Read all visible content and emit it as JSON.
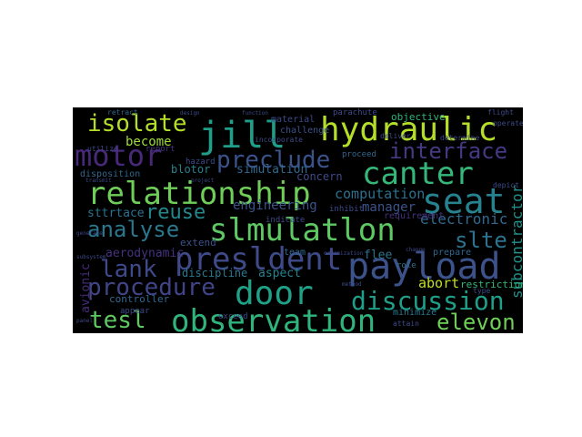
{
  "wordcloud": {
    "background": "#000000",
    "colormap": [
      "#440154",
      "#3b528b",
      "#21918c",
      "#5ec962",
      "#fde725"
    ],
    "words": [
      {
        "text": "hydraulic",
        "color": "#b5de2b",
        "weight": 1.0
      },
      {
        "text": "observation",
        "color": "#2fb47c",
        "weight": 0.98
      },
      {
        "text": "relationship",
        "color": "#6ece58",
        "weight": 0.96
      },
      {
        "text": "slmulatlon",
        "color": "#5ec962",
        "weight": 0.94
      },
      {
        "text": "presldent",
        "color": "#3e4a89",
        "weight": 0.92
      },
      {
        "text": "payload",
        "color": "#3b528b",
        "weight": 0.92
      },
      {
        "text": "canter",
        "color": "#35b779",
        "weight": 0.9
      },
      {
        "text": "motor",
        "color": "#482878",
        "weight": 0.85
      },
      {
        "text": "isolate",
        "color": "#b5de2b",
        "weight": 0.84
      },
      {
        "text": "jill",
        "color": "#1f9e89",
        "weight": 0.86
      },
      {
        "text": "seat",
        "color": "#26828e",
        "weight": 0.86
      },
      {
        "text": "door",
        "color": "#1fa187",
        "weight": 0.84
      },
      {
        "text": "discussion",
        "color": "#1f9e89",
        "weight": 0.8
      },
      {
        "text": "preclude",
        "color": "#3b528b",
        "weight": 0.78
      },
      {
        "text": "interface",
        "color": "#443983",
        "weight": 0.74
      },
      {
        "text": "procedure",
        "color": "#414487",
        "weight": 0.74
      },
      {
        "text": "analyse",
        "color": "#2a788e",
        "weight": 0.72
      },
      {
        "text": "tesl",
        "color": "#5ec962",
        "weight": 0.72
      },
      {
        "text": "lank",
        "color": "#3e4a89",
        "weight": 0.7
      },
      {
        "text": "reuse",
        "color": "#23888e",
        "weight": 0.7
      },
      {
        "text": "elevon",
        "color": "#6ece58",
        "weight": 0.66
      },
      {
        "text": "slte",
        "color": "#2c728e",
        "weight": 0.64
      },
      {
        "text": "subcontractor",
        "color": "#21918c",
        "weight": 0.5
      },
      {
        "text": "electronic",
        "color": "#31688e",
        "weight": 0.48
      },
      {
        "text": "computation",
        "color": "#2d708e",
        "weight": 0.46
      },
      {
        "text": "become",
        "color": "#a0da39",
        "weight": 0.44
      },
      {
        "text": "abort",
        "color": "#c2df23",
        "weight": 0.44
      },
      {
        "text": "engineering",
        "color": "#3b528b",
        "weight": 0.4
      },
      {
        "text": "avionic",
        "color": "#472d7b",
        "weight": 0.4
      },
      {
        "text": "simulation",
        "color": "#31688e",
        "weight": 0.38
      },
      {
        "text": "manager",
        "color": "#3b528b",
        "weight": 0.38
      },
      {
        "text": "sttrtace",
        "color": "#2c728e",
        "weight": 0.36
      },
      {
        "text": "aerodynamic",
        "color": "#46327e",
        "weight": 0.34
      },
      {
        "text": "discipline",
        "color": "#2a788e",
        "weight": 0.34
      },
      {
        "text": "aspect",
        "color": "#26828e",
        "weight": 0.34
      },
      {
        "text": "flee",
        "color": "#2c728e",
        "weight": 0.34
      },
      {
        "text": "blotor",
        "color": "#26828e",
        "weight": 0.32
      },
      {
        "text": "restriction",
        "color": "#35b779",
        "weight": 0.32
      },
      {
        "text": "concern",
        "color": "#3e4a89",
        "weight": 0.3
      },
      {
        "text": "extend",
        "color": "#3b528b",
        "weight": 0.28
      },
      {
        "text": "controller",
        "color": "#31688e",
        "weight": 0.28
      },
      {
        "text": "minimize",
        "color": "#2a788e",
        "weight": 0.26
      },
      {
        "text": "requirement",
        "color": "#46327e",
        "weight": 0.26
      },
      {
        "text": "material",
        "color": "#3e4a89",
        "weight": 0.26
      },
      {
        "text": "challenge",
        "color": "#3b528b",
        "weight": 0.26
      },
      {
        "text": "objective",
        "color": "#2fb47c",
        "weight": 0.26
      },
      {
        "text": "parachute",
        "color": "#3e4a89",
        "weight": 0.24
      },
      {
        "text": "hazard",
        "color": "#3e4a89",
        "weight": 0.24
      },
      {
        "text": "disposition",
        "color": "#31688e",
        "weight": 0.24
      },
      {
        "text": "team",
        "color": "#31688e",
        "weight": 0.24
      },
      {
        "text": "prepare",
        "color": "#31688e",
        "weight": 0.24
      },
      {
        "text": "indicate",
        "color": "#3e4a89",
        "weight": 0.22
      },
      {
        "text": "proceed",
        "color": "#31688e",
        "weight": 0.22
      },
      {
        "text": "inhibit",
        "color": "#3e4a89",
        "weight": 0.22
      },
      {
        "text": "role",
        "color": "#2c728e",
        "weight": 0.22
      },
      {
        "text": "exceed",
        "color": "#3e4a89",
        "weight": 0.22
      },
      {
        "text": "report",
        "color": "#46327e",
        "weight": 0.22
      },
      {
        "text": "appear",
        "color": "#3e4a89",
        "weight": 0.22
      },
      {
        "text": "attain",
        "color": "#3e4a89",
        "weight": 0.2
      },
      {
        "text": "deliver",
        "color": "#3e4a89",
        "weight": 0.2
      },
      {
        "text": "determine",
        "color": "#3e4a89",
        "weight": 0.2
      },
      {
        "text": "incorporate",
        "color": "#3e4a89",
        "weight": 0.2
      },
      {
        "text": "utilize",
        "color": "#3e4a89",
        "weight": 0.2
      },
      {
        "text": "operate",
        "color": "#3e4a89",
        "weight": 0.2
      },
      {
        "text": "depict",
        "color": "#3e4a89",
        "weight": 0.2
      },
      {
        "text": "type",
        "color": "#3e4a89",
        "weight": 0.2
      },
      {
        "text": "flight",
        "color": "#3e4a89",
        "weight": 0.2
      },
      {
        "text": "retract",
        "color": "#31688e",
        "weight": 0.18
      },
      {
        "text": "transmit",
        "color": "#3e4a89",
        "weight": 0.16
      },
      {
        "text": "project",
        "color": "#3e4a89",
        "weight": 0.16
      },
      {
        "text": "function",
        "color": "#3e4a89",
        "weight": 0.16
      },
      {
        "text": "design",
        "color": "#3e4a89",
        "weight": 0.16
      },
      {
        "text": "organization",
        "color": "#3e4a89",
        "weight": 0.14
      },
      {
        "text": "change",
        "color": "#3e4a89",
        "weight": 0.14
      },
      {
        "text": "method",
        "color": "#3e4a89",
        "weight": 0.14
      },
      {
        "text": "panel",
        "color": "#3e4a89",
        "weight": 0.14
      },
      {
        "text": "generate",
        "color": "#3e4a89",
        "weight": 0.14
      },
      {
        "text": "subsystem",
        "color": "#3e4a89",
        "weight": 0.14
      }
    ]
  }
}
